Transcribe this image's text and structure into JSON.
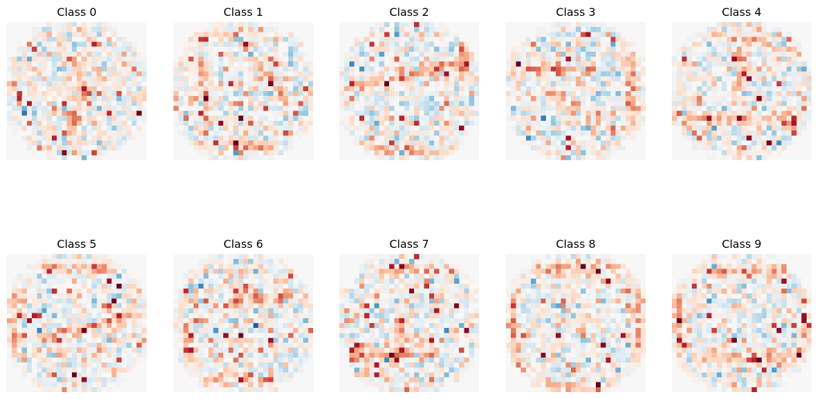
{
  "chart_data": [
    {
      "type": "heatmap",
      "title": "Class 0",
      "grid_size": 28,
      "colormap": "RdBu_r",
      "color_range": "symmetric about 0 (white = 0, red = positive, blue = negative)"
    },
    {
      "type": "heatmap",
      "title": "Class 1",
      "grid_size": 28,
      "colormap": "RdBu_r",
      "color_range": "symmetric about 0 (white = 0, red = positive, blue = negative)"
    },
    {
      "type": "heatmap",
      "title": "Class 2",
      "grid_size": 28,
      "colormap": "RdBu_r",
      "color_range": "symmetric about 0 (white = 0, red = positive, blue = negative)"
    },
    {
      "type": "heatmap",
      "title": "Class 3",
      "grid_size": 28,
      "colormap": "RdBu_r",
      "color_range": "symmetric about 0 (white = 0, red = positive, blue = negative)"
    },
    {
      "type": "heatmap",
      "title": "Class 4",
      "grid_size": 28,
      "colormap": "RdBu_r",
      "color_range": "symmetric about 0 (white = 0, red = positive, blue = negative)"
    },
    {
      "type": "heatmap",
      "title": "Class 5",
      "grid_size": 28,
      "colormap": "RdBu_r",
      "color_range": "symmetric about 0 (white = 0, red = positive, blue = negative)"
    },
    {
      "type": "heatmap",
      "title": "Class 6",
      "grid_size": 28,
      "colormap": "RdBu_r",
      "color_range": "symmetric about 0 (white = 0, red = positive, blue = negative)"
    },
    {
      "type": "heatmap",
      "title": "Class 7",
      "grid_size": 28,
      "colormap": "RdBu_r",
      "color_range": "symmetric about 0 (white = 0, red = positive, blue = negative)"
    },
    {
      "type": "heatmap",
      "title": "Class 8",
      "grid_size": 28,
      "colormap": "RdBu_r",
      "color_range": "symmetric about 0 (white = 0, red = positive, blue = negative)"
    },
    {
      "type": "heatmap",
      "title": "Class 9",
      "grid_size": 28,
      "colormap": "RdBu_r",
      "color_range": "symmetric about 0 (white = 0, red = positive, blue = negative)"
    }
  ],
  "axes_visible": false,
  "colors": {
    "positive": "#b2182b",
    "neutral": "#f7f7f7",
    "negative": "#2166ac",
    "background": "#ffffff"
  }
}
